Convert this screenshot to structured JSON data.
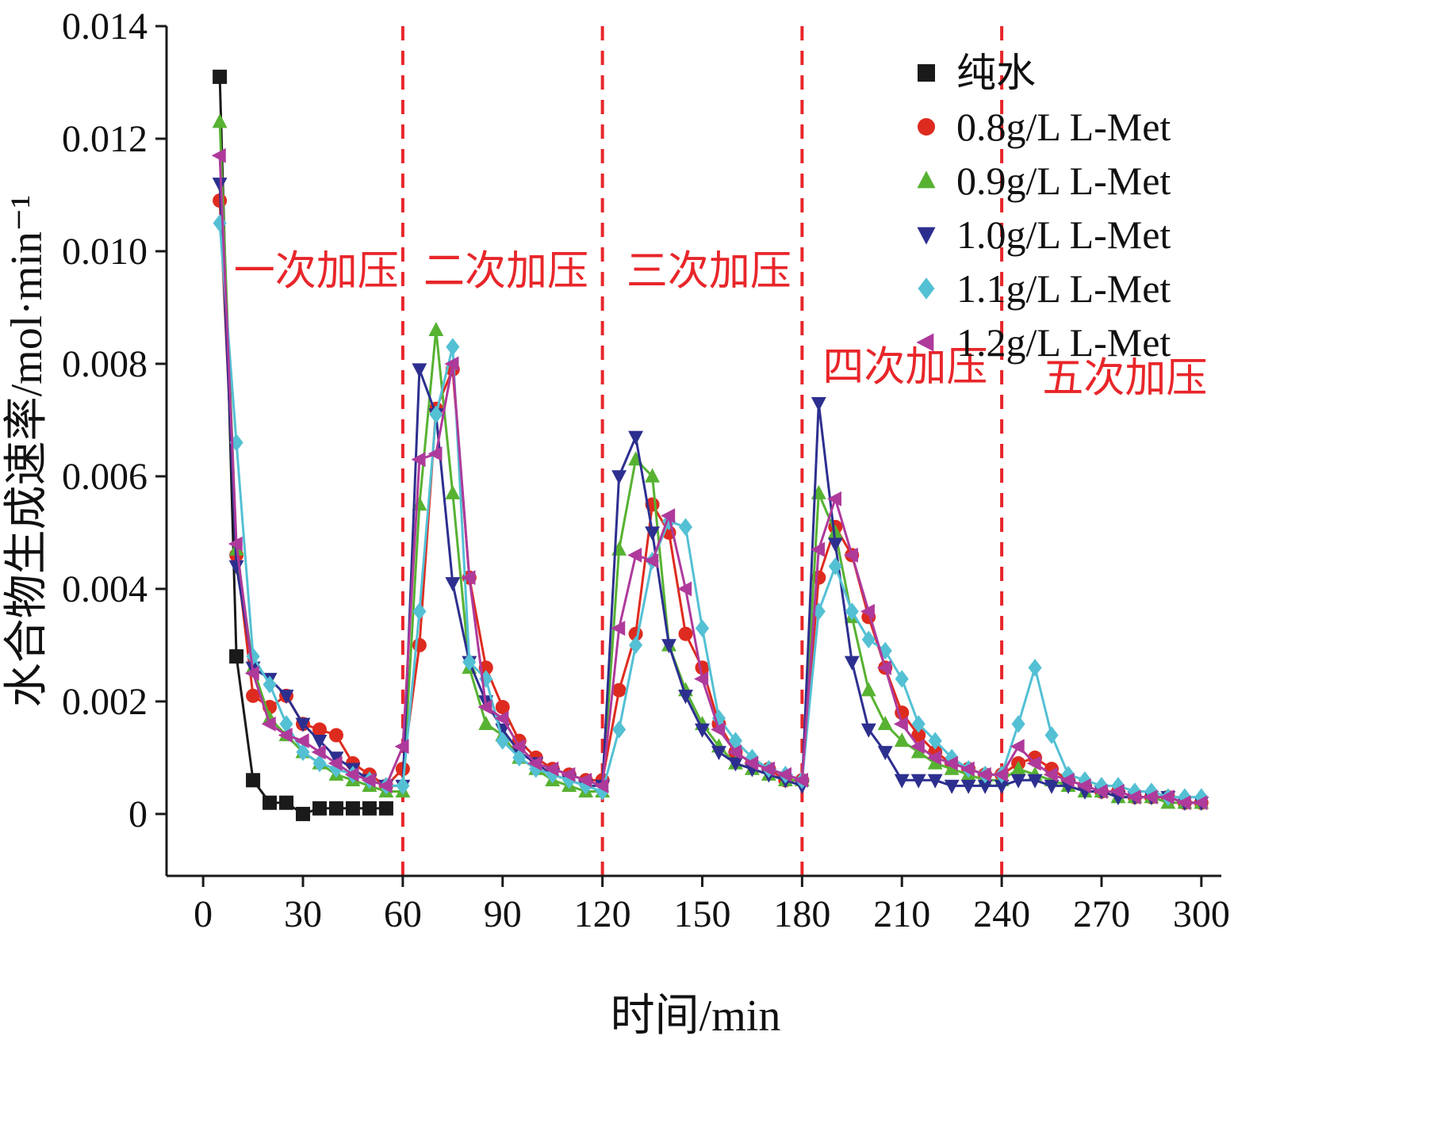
{
  "chart_data": {
    "type": "line",
    "title": "",
    "xlabel": "时间/min",
    "ylabel": "水合物生成速率/mol·min⁻¹",
    "xlim": [
      -11,
      306
    ],
    "ylim": [
      -0.0011,
      0.014
    ],
    "xticks": [
      0,
      30,
      60,
      90,
      120,
      150,
      180,
      210,
      240,
      270,
      300
    ],
    "ytick_values": [
      0,
      0.002,
      0.004,
      0.006,
      0.008,
      0.01,
      0.012,
      0.014
    ],
    "yticks": [
      "0",
      "0.002",
      "0.004",
      "0.006",
      "0.008",
      "0.010",
      "0.012",
      "0.014"
    ],
    "grid": false,
    "legend_position": "top-right-inside",
    "axis_color": "#1a1a1a",
    "pressure_lines": {
      "x": [
        60,
        120,
        180,
        240
      ],
      "color": "#e8262a",
      "style": "dashed"
    },
    "annotations": [
      {
        "text": "一次加压",
        "x": 34,
        "y": 0.0094,
        "color": "#e8262a"
      },
      {
        "text": "二次加压",
        "x": 91,
        "y": 0.0094,
        "color": "#e8262a"
      },
      {
        "text": "三次加压",
        "x": 152,
        "y": 0.0094,
        "color": "#e8262a"
      },
      {
        "text": "四次加压",
        "x": 211,
        "y": 0.0077,
        "color": "#e8262a"
      },
      {
        "text": "五次加压",
        "x": 277,
        "y": 0.0075,
        "color": "#e8262a"
      }
    ],
    "x": [
      5,
      10,
      15,
      20,
      25,
      30,
      35,
      40,
      45,
      50,
      55,
      60,
      65,
      70,
      75,
      80,
      85,
      90,
      95,
      100,
      105,
      110,
      115,
      120,
      125,
      130,
      135,
      140,
      145,
      150,
      155,
      160,
      165,
      170,
      175,
      180,
      185,
      190,
      195,
      200,
      205,
      210,
      215,
      220,
      225,
      230,
      235,
      240,
      245,
      250,
      255,
      260,
      265,
      270,
      275,
      280,
      285,
      290,
      295,
      300
    ],
    "series": [
      {
        "name": "纯水",
        "marker": "square",
        "color": "#1a1a1a",
        "x": [
          5,
          10,
          15,
          20,
          25,
          30,
          35,
          40,
          45,
          50,
          55
        ],
        "y": [
          0.0131,
          0.0028,
          0.0006,
          0.0002,
          0.0002,
          0.0,
          0.0001,
          0.0001,
          0.0001,
          0.0001,
          0.0001
        ]
      },
      {
        "name": "0.8g/L L-Met",
        "marker": "circle",
        "color": "#de2b1f",
        "y": [
          0.0109,
          0.0046,
          0.0021,
          0.0019,
          0.0021,
          0.0016,
          0.0015,
          0.0014,
          0.0009,
          0.0007,
          0.0005,
          0.0008,
          0.003,
          0.0072,
          0.0079,
          0.0042,
          0.0026,
          0.0019,
          0.0013,
          0.001,
          0.0008,
          0.0007,
          0.0006,
          0.0006,
          0.0022,
          0.0032,
          0.0055,
          0.005,
          0.0032,
          0.0026,
          0.0016,
          0.0011,
          0.0009,
          0.0008,
          0.0006,
          0.0006,
          0.0042,
          0.0051,
          0.0046,
          0.0035,
          0.0026,
          0.0018,
          0.0014,
          0.0011,
          0.0009,
          0.0008,
          0.0007,
          0.0007,
          0.0009,
          0.001,
          0.0008,
          0.0006,
          0.0005,
          0.0004,
          0.0004,
          0.0003,
          0.0003,
          0.0003,
          0.0002,
          0.0002
        ]
      },
      {
        "name": "0.9g/L L-Met",
        "marker": "triangle-up",
        "color": "#57b232",
        "y": [
          0.0123,
          0.0047,
          0.0026,
          0.0017,
          0.0014,
          0.0011,
          0.0009,
          0.0007,
          0.0006,
          0.0005,
          0.0004,
          0.0004,
          0.0055,
          0.0086,
          0.0057,
          0.0026,
          0.0016,
          0.0014,
          0.001,
          0.0008,
          0.0006,
          0.0005,
          0.0004,
          0.0004,
          0.0047,
          0.0063,
          0.006,
          0.003,
          0.0022,
          0.0016,
          0.0012,
          0.0009,
          0.0008,
          0.0007,
          0.0006,
          0.0006,
          0.0057,
          0.005,
          0.0035,
          0.0022,
          0.0016,
          0.0013,
          0.0011,
          0.0009,
          0.0008,
          0.0007,
          0.0006,
          0.0006,
          0.0008,
          0.0007,
          0.0006,
          0.0005,
          0.0004,
          0.0004,
          0.0003,
          0.0003,
          0.0003,
          0.0002,
          0.0002,
          0.0002
        ]
      },
      {
        "name": "1.0g/L L-Met",
        "marker": "triangle-down",
        "color": "#2d2f8f",
        "y": [
          0.0112,
          0.0044,
          0.0026,
          0.0024,
          0.0021,
          0.0016,
          0.0013,
          0.001,
          0.0008,
          0.0006,
          0.0005,
          0.0005,
          0.0079,
          0.0071,
          0.0041,
          0.0027,
          0.002,
          0.0015,
          0.0011,
          0.0009,
          0.0007,
          0.0006,
          0.0005,
          0.0005,
          0.006,
          0.0067,
          0.005,
          0.003,
          0.0021,
          0.0015,
          0.0011,
          0.0009,
          0.0008,
          0.0007,
          0.0006,
          0.0005,
          0.0073,
          0.0048,
          0.0027,
          0.0015,
          0.0011,
          0.0006,
          0.0006,
          0.0006,
          0.0005,
          0.0005,
          0.0005,
          0.0005,
          0.0006,
          0.0006,
          0.0005,
          0.0005,
          0.0004,
          0.0004,
          0.0003,
          0.0003,
          0.0003,
          0.0003,
          0.0002,
          0.0002
        ]
      },
      {
        "name": "1.1g/L L-Met",
        "marker": "diamond",
        "color": "#54c0d4",
        "y": [
          0.0105,
          0.0066,
          0.0028,
          0.0023,
          0.0016,
          0.0011,
          0.0009,
          0.0008,
          0.0007,
          0.0006,
          0.0005,
          0.0005,
          0.0036,
          0.0071,
          0.0083,
          0.0027,
          0.0024,
          0.0013,
          0.001,
          0.0008,
          0.0007,
          0.0006,
          0.0005,
          0.0004,
          0.0015,
          0.003,
          0.0045,
          0.0052,
          0.0051,
          0.0033,
          0.0017,
          0.0013,
          0.001,
          0.0008,
          0.0007,
          0.0006,
          0.0036,
          0.0044,
          0.0036,
          0.0031,
          0.0029,
          0.0024,
          0.0016,
          0.0013,
          0.001,
          0.0008,
          0.0007,
          0.0007,
          0.0016,
          0.0026,
          0.0014,
          0.0007,
          0.0006,
          0.0005,
          0.0005,
          0.0004,
          0.0004,
          0.0003,
          0.0003,
          0.0003
        ]
      },
      {
        "name": "1.2g/L L-Met",
        "marker": "triangle-left",
        "color": "#ae3a9b",
        "y": [
          0.0117,
          0.0048,
          0.0025,
          0.0016,
          0.0014,
          0.0013,
          0.0011,
          0.0009,
          0.0007,
          0.0006,
          0.0005,
          0.0012,
          0.0063,
          0.0064,
          0.008,
          0.0042,
          0.0019,
          0.0017,
          0.0012,
          0.0009,
          0.0008,
          0.0007,
          0.0006,
          0.0005,
          0.0033,
          0.0046,
          0.0045,
          0.0053,
          0.004,
          0.0024,
          0.0015,
          0.0011,
          0.0009,
          0.0008,
          0.0007,
          0.0006,
          0.0047,
          0.0056,
          0.0046,
          0.0036,
          0.0026,
          0.0016,
          0.0012,
          0.001,
          0.0009,
          0.0008,
          0.0007,
          0.0007,
          0.0012,
          0.0009,
          0.0007,
          0.0006,
          0.0005,
          0.0004,
          0.0004,
          0.0003,
          0.0003,
          0.0003,
          0.0002,
          0.0002
        ]
      }
    ]
  }
}
